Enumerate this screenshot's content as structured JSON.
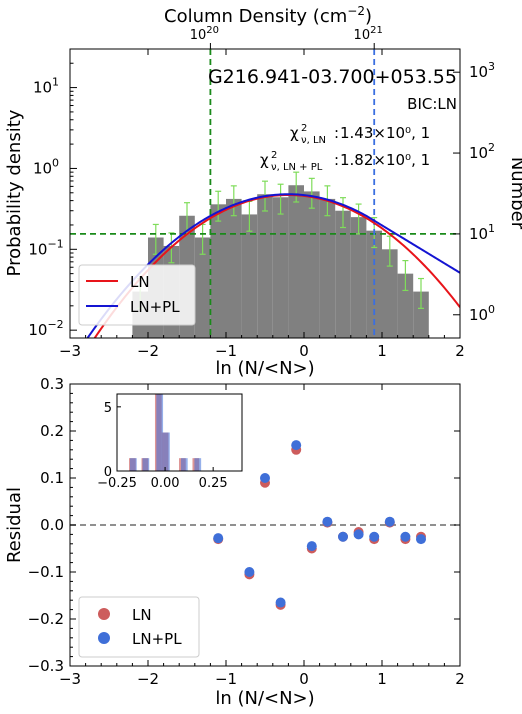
{
  "chart_data": [
    {
      "type": "bar",
      "panel": "top",
      "title": "G216.941-03.700+053.55",
      "bic_label": "BIC:LN",
      "chi_ln_text": "1.43×10⁰, 1",
      "chi_lnpl_text": "1.82×10⁰, 1",
      "chi_ln_sub": "ν, LN",
      "chi_lnpl_sub": "ν, LN + PL",
      "xlabel": "ln (N/<N>)",
      "ylabel": "Probability density",
      "ylabel_right": "Number",
      "xlabel_top": "Column Density (cm",
      "xlabel_top_sup": "−2",
      "xlabel_top_close": ")",
      "top_ticks": [
        {
          "base": "10",
          "exp": "20",
          "x": -1.2
        },
        {
          "base": "10",
          "exp": "21",
          "x": 0.9
        }
      ],
      "xlim": [
        -3,
        2
      ],
      "ylim_log": [
        0.008,
        30
      ],
      "xticks": [
        -3,
        -2,
        -1,
        0,
        1,
        2
      ],
      "xtick_labels": [
        "−3",
        "−2",
        "−1",
        "0",
        "1",
        "2"
      ],
      "yticks_left": [
        {
          "base": "10",
          "exp": "−2",
          "v": 0.01
        },
        {
          "base": "10",
          "exp": "−1",
          "v": 0.1
        },
        {
          "base": "10",
          "exp": "0",
          "v": 1
        },
        {
          "base": "10",
          "exp": "1",
          "v": 10
        }
      ],
      "yticks_right": [
        {
          "base": "10",
          "exp": "0",
          "v": 0.0155
        },
        {
          "base": "10",
          "exp": "1",
          "v": 0.155
        },
        {
          "base": "10",
          "exp": "2",
          "v": 1.55
        },
        {
          "base": "10",
          "exp": "3",
          "v": 15.5
        }
      ],
      "bin_width": 0.2,
      "histogram": [
        {
          "x": -2.1,
          "y": 0.03
        },
        {
          "x": -1.9,
          "y": 0.14
        },
        {
          "x": -1.7,
          "y": 0.11
        },
        {
          "x": -1.5,
          "y": 0.26
        },
        {
          "x": -1.3,
          "y": 0.14
        },
        {
          "x": -1.1,
          "y": 0.36
        },
        {
          "x": -0.9,
          "y": 0.42
        },
        {
          "x": -0.7,
          "y": 0.27
        },
        {
          "x": -0.5,
          "y": 0.48
        },
        {
          "x": -0.3,
          "y": 0.44
        },
        {
          "x": -0.1,
          "y": 0.62
        },
        {
          "x": 0.1,
          "y": 0.52
        },
        {
          "x": 0.3,
          "y": 0.42
        },
        {
          "x": 0.5,
          "y": 0.3
        },
        {
          "x": 0.7,
          "y": 0.25
        },
        {
          "x": 0.9,
          "y": 0.17
        },
        {
          "x": 1.1,
          "y": 0.1
        },
        {
          "x": 1.3,
          "y": 0.05
        },
        {
          "x": 1.5,
          "y": 0.03
        }
      ],
      "error_up_factor": 1.45,
      "error_down_factor": 0.62,
      "ln_curve": {
        "amp": 0.47,
        "mu": -0.2,
        "sigma": 0.87
      },
      "lnpl_curve": {
        "amp": 0.48,
        "mu": -0.2,
        "sigma": 0.9,
        "break": 0.8,
        "slope": -1.35
      },
      "hline": 0.155,
      "vline_green": -1.2,
      "vline_blue": 0.9,
      "legend": [
        "LN",
        "LN+PL"
      ],
      "colors": {
        "hist": "#808080",
        "errorbar": "#7fdc5a",
        "ln": "#e8141a",
        "lnpl": "#1414d2",
        "green_dash": "#1a8a1a",
        "blue_dash": "#3b6fe0"
      }
    },
    {
      "type": "scatter",
      "panel": "bottom",
      "xlabel": "ln (N/<N>)",
      "ylabel": "Residual",
      "xlim": [
        -3,
        2
      ],
      "ylim": [
        -0.3,
        0.3
      ],
      "xticks": [
        -3,
        -2,
        -1,
        0,
        1,
        2
      ],
      "xtick_labels": [
        "−3",
        "−2",
        "−1",
        "0",
        "1",
        "2"
      ],
      "yticks": [
        -0.3,
        -0.2,
        -0.1,
        0.0,
        0.1,
        0.2,
        0.3
      ],
      "ytick_labels": [
        "−0.3",
        "−0.2",
        "−0.1",
        "0.0",
        "0.1",
        "0.2",
        "0.3"
      ],
      "series": [
        {
          "name": "LN",
          "color": "#cd5c5c",
          "x": [
            -1.1,
            -0.7,
            -0.5,
            -0.3,
            -0.1,
            0.1,
            0.3,
            0.5,
            0.7,
            0.9,
            1.1,
            1.3,
            1.5
          ],
          "y": [
            -0.03,
            -0.105,
            0.09,
            -0.17,
            0.16,
            -0.05,
            0.005,
            -0.025,
            -0.015,
            -0.03,
            0.005,
            -0.03,
            -0.025
          ]
        },
        {
          "name": "LN+PL",
          "color": "#3f6fd8",
          "x": [
            -1.1,
            -0.7,
            -0.5,
            -0.3,
            -0.1,
            0.1,
            0.3,
            0.5,
            0.7,
            0.9,
            1.1,
            1.3,
            1.5
          ],
          "y": [
            -0.028,
            -0.1,
            0.1,
            -0.165,
            0.17,
            -0.045,
            0.007,
            -0.025,
            -0.02,
            -0.025,
            0.007,
            -0.025,
            -0.03
          ]
        }
      ],
      "inset": {
        "xlim": [
          -0.25,
          0.4
        ],
        "ylim": [
          0,
          6
        ],
        "xticks": [
          -0.25,
          0.0,
          0.25
        ],
        "xtick_labels": [
          "−0.25",
          "0.00",
          "0.25"
        ],
        "yticks": [
          0,
          5
        ],
        "ytick_labels": [
          "0",
          "5"
        ],
        "bin_width": 0.035,
        "ln_bins": [
          {
            "x": -0.17,
            "y": 1
          },
          {
            "x": -0.105,
            "y": 1
          },
          {
            "x": -0.035,
            "y": 6
          },
          {
            "x": -0.0,
            "y": 3
          },
          {
            "x": 0.09,
            "y": 1
          },
          {
            "x": 0.16,
            "y": 1
          }
        ],
        "lnpl_bins": [
          {
            "x": -0.165,
            "y": 1
          },
          {
            "x": -0.1,
            "y": 1
          },
          {
            "x": -0.028,
            "y": 6
          },
          {
            "x": 0.007,
            "y": 3
          },
          {
            "x": 0.1,
            "y": 1
          },
          {
            "x": 0.17,
            "y": 1
          }
        ]
      }
    }
  ]
}
